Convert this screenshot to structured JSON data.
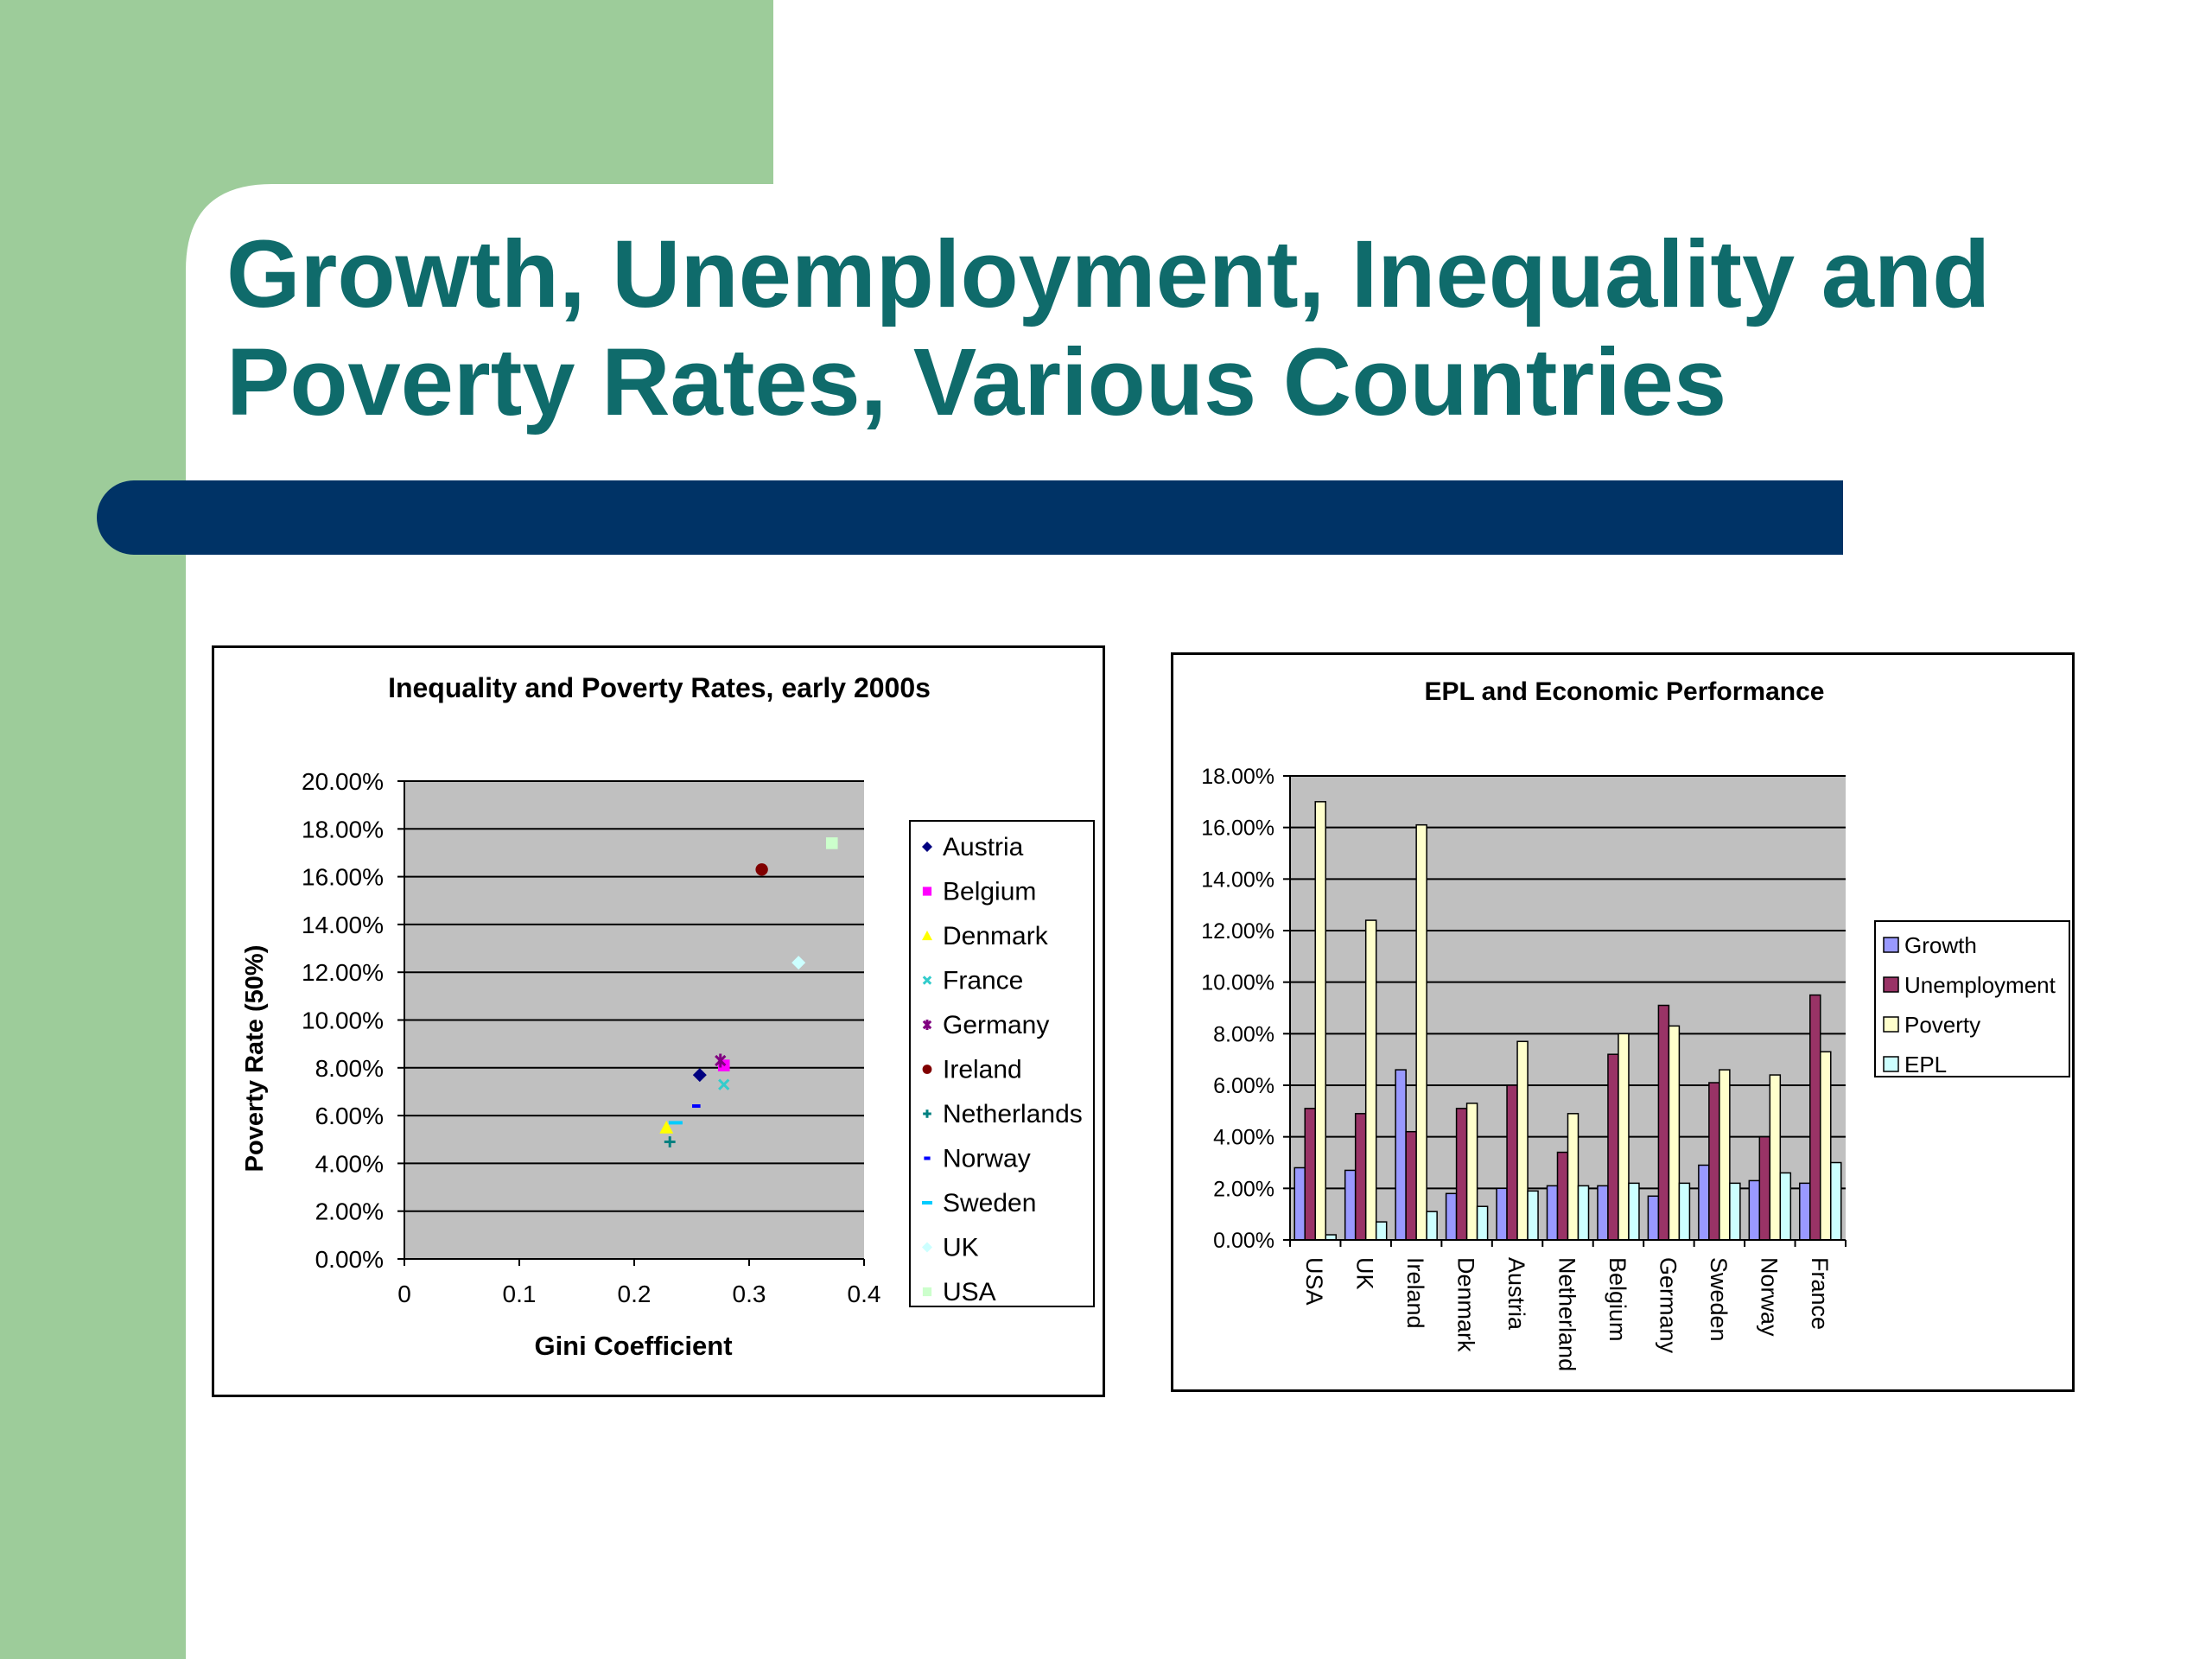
{
  "slide": {
    "title_line1": "Growth, Unemployment, Inequality and",
    "title_line2": "Poverty Rates, Various Countries",
    "colors": {
      "sidebar": "#9dcc9a",
      "title": "#0f6b6b",
      "bar": "#003366",
      "plot_bg": "#c0c0c0"
    }
  },
  "chart_data": [
    {
      "type": "scatter",
      "title": "Inequality and Poverty Rates, early 2000s",
      "xlabel": "Gini Coefficient",
      "ylabel": "Poverty Rate (50%)",
      "xlim": [
        0,
        0.4
      ],
      "ylim": [
        0,
        0.2
      ],
      "x_ticks": [
        "0",
        "0.1",
        "0.2",
        "0.3",
        "0.4"
      ],
      "y_ticks": [
        "0.00%",
        "2.00%",
        "4.00%",
        "6.00%",
        "8.00%",
        "10.00%",
        "12.00%",
        "14.00%",
        "16.00%",
        "18.00%",
        "20.00%"
      ],
      "grid": "horizontal",
      "legend_position": "right",
      "series": [
        {
          "name": "Austria",
          "x": 0.257,
          "y": 0.077,
          "marker": "diamond",
          "color": "#000080"
        },
        {
          "name": "Belgium",
          "x": 0.278,
          "y": 0.081,
          "marker": "square",
          "color": "#ff00ff"
        },
        {
          "name": "Denmark",
          "x": 0.228,
          "y": 0.055,
          "marker": "triangle",
          "color": "#ffff00"
        },
        {
          "name": "France",
          "x": 0.278,
          "y": 0.073,
          "marker": "x",
          "color": "#33cccc"
        },
        {
          "name": "Germany",
          "x": 0.275,
          "y": 0.083,
          "marker": "star",
          "color": "#800080"
        },
        {
          "name": "Ireland",
          "x": 0.311,
          "y": 0.163,
          "marker": "circle",
          "color": "#800000"
        },
        {
          "name": "Netherlands",
          "x": 0.231,
          "y": 0.049,
          "marker": "plus",
          "color": "#008080"
        },
        {
          "name": "Norway",
          "x": 0.254,
          "y": 0.064,
          "marker": "dash",
          "color": "#0000ff"
        },
        {
          "name": "Sweden",
          "x": 0.236,
          "y": 0.057,
          "marker": "longdash",
          "color": "#00ccff"
        },
        {
          "name": "UK",
          "x": 0.343,
          "y": 0.124,
          "marker": "diamond",
          "color": "#ccffff"
        },
        {
          "name": "USA",
          "x": 0.372,
          "y": 0.174,
          "marker": "square",
          "color": "#ccffcc"
        }
      ]
    },
    {
      "type": "bar",
      "title": "EPL and Economic Performance",
      "categories": [
        "USA",
        "UK",
        "Ireland",
        "Denmark",
        "Austria",
        "Netherland",
        "Belgium",
        "Germany",
        "Sweden",
        "Norway",
        "France"
      ],
      "ylim": [
        0,
        0.18
      ],
      "y_ticks": [
        "0.00%",
        "2.00%",
        "4.00%",
        "6.00%",
        "8.00%",
        "10.00%",
        "12.00%",
        "14.00%",
        "16.00%",
        "18.00%"
      ],
      "grid": "horizontal",
      "legend_position": "right",
      "series": [
        {
          "name": "Growth",
          "color": "#9999ff",
          "values": [
            0.028,
            0.027,
            0.066,
            0.018,
            0.02,
            0.021,
            0.021,
            0.017,
            0.029,
            0.023,
            0.022
          ]
        },
        {
          "name": "Unemployment",
          "color": "#993366",
          "values": [
            0.051,
            0.049,
            0.042,
            0.051,
            0.06,
            0.034,
            0.072,
            0.091,
            0.061,
            0.04,
            0.095
          ]
        },
        {
          "name": "Poverty",
          "color": "#ffffcc",
          "values": [
            0.17,
            0.124,
            0.161,
            0.053,
            0.077,
            0.049,
            0.08,
            0.083,
            0.066,
            0.064,
            0.073
          ]
        },
        {
          "name": "EPL",
          "color": "#ccffff",
          "values": [
            0.002,
            0.007,
            0.011,
            0.013,
            0.019,
            0.021,
            0.022,
            0.022,
            0.022,
            0.026,
            0.03
          ]
        }
      ]
    }
  ]
}
